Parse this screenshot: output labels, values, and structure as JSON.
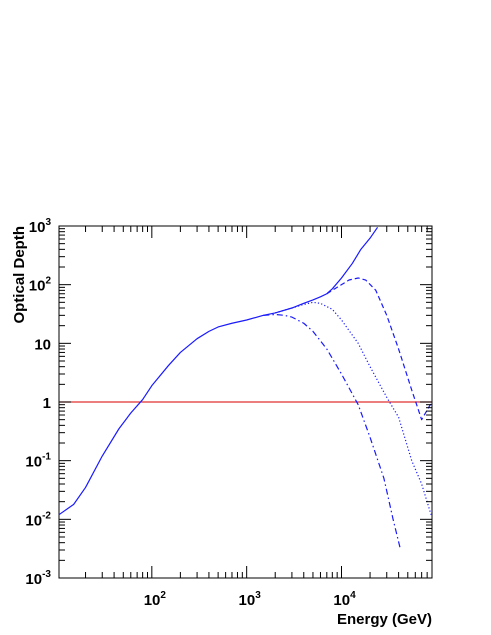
{
  "chart_data": {
    "type": "line",
    "title": "",
    "xlabel": "Energy (GeV)",
    "ylabel": "Optical Depth",
    "x_scale": "log",
    "y_scale": "log",
    "xlim": [
      10.5,
      90000
    ],
    "ylim": [
      0.001,
      1000
    ],
    "grid": false,
    "x_tick_labels": [
      {
        "value": 100,
        "base": "10",
        "exp": "2"
      },
      {
        "value": 1000,
        "base": "10",
        "exp": "3"
      },
      {
        "value": 10000,
        "base": "10",
        "exp": "4"
      }
    ],
    "y_tick_labels": [
      {
        "value": 0.001,
        "base": "10",
        "exp": "-3"
      },
      {
        "value": 0.01,
        "base": "10",
        "exp": "-2"
      },
      {
        "value": 0.1,
        "base": "10",
        "exp": "-1"
      },
      {
        "value": 1,
        "base": "1",
        "exp": ""
      },
      {
        "value": 10,
        "base": "10",
        "exp": ""
      },
      {
        "value": 100,
        "base": "10",
        "exp": "2"
      },
      {
        "value": 1000,
        "base": "10",
        "exp": "3"
      }
    ],
    "reference_line": {
      "y": 1,
      "color": "#e03030"
    },
    "series": [
      {
        "style": "solid",
        "color": "#1a1aff",
        "points": [
          [
            10.5,
            0.012
          ],
          [
            15,
            0.018
          ],
          [
            20,
            0.035
          ],
          [
            30,
            0.12
          ],
          [
            45,
            0.35
          ],
          [
            60,
            0.65
          ],
          [
            80,
            1.1
          ],
          [
            100,
            1.9
          ],
          [
            150,
            4.2
          ],
          [
            200,
            7
          ],
          [
            300,
            12
          ],
          [
            400,
            16
          ],
          [
            500,
            19
          ],
          [
            700,
            22
          ],
          [
            1000,
            25
          ],
          [
            1500,
            30
          ],
          [
            2000,
            33
          ],
          [
            3000,
            40
          ],
          [
            4000,
            48
          ],
          [
            5000,
            55
          ],
          [
            6000,
            62
          ],
          [
            7000,
            70
          ],
          [
            8000,
            85
          ],
          [
            10000,
            130
          ],
          [
            13000,
            230
          ],
          [
            16000,
            400
          ],
          [
            20000,
            620
          ],
          [
            24000,
            950
          ]
        ]
      },
      {
        "style": "dashed",
        "color": "#1a1aff",
        "points": [
          [
            7000,
            70
          ],
          [
            8000,
            80
          ],
          [
            10000,
            100
          ],
          [
            12000,
            120
          ],
          [
            15000,
            130
          ],
          [
            18000,
            120
          ],
          [
            23000,
            80
          ],
          [
            30000,
            30
          ],
          [
            40000,
            8
          ],
          [
            55000,
            1.6
          ],
          [
            70000,
            0.5
          ],
          [
            88000,
            0.95
          ]
        ]
      },
      {
        "style": "dotted",
        "color": "#1a1aff",
        "points": [
          [
            2000,
            33
          ],
          [
            3000,
            40
          ],
          [
            4000,
            46
          ],
          [
            5000,
            50
          ],
          [
            6000,
            48
          ],
          [
            8000,
            38
          ],
          [
            10000,
            25
          ],
          [
            15000,
            10
          ],
          [
            20000,
            4
          ],
          [
            30000,
            1.2
          ],
          [
            40000,
            0.55
          ],
          [
            55000,
            0.1
          ],
          [
            70000,
            0.04
          ],
          [
            88000,
            0.012
          ]
        ]
      },
      {
        "style": "dashdot",
        "color": "#1a1aff",
        "points": [
          [
            1500,
            30
          ],
          [
            2000,
            31
          ],
          [
            2500,
            30
          ],
          [
            3000,
            28
          ],
          [
            4000,
            22
          ],
          [
            5000,
            16
          ],
          [
            7000,
            8
          ],
          [
            10000,
            3
          ],
          [
            15000,
            0.9
          ],
          [
            20000,
            0.25
          ],
          [
            28000,
            0.05
          ],
          [
            35000,
            0.01
          ],
          [
            42000,
            0.003
          ]
        ]
      }
    ]
  }
}
